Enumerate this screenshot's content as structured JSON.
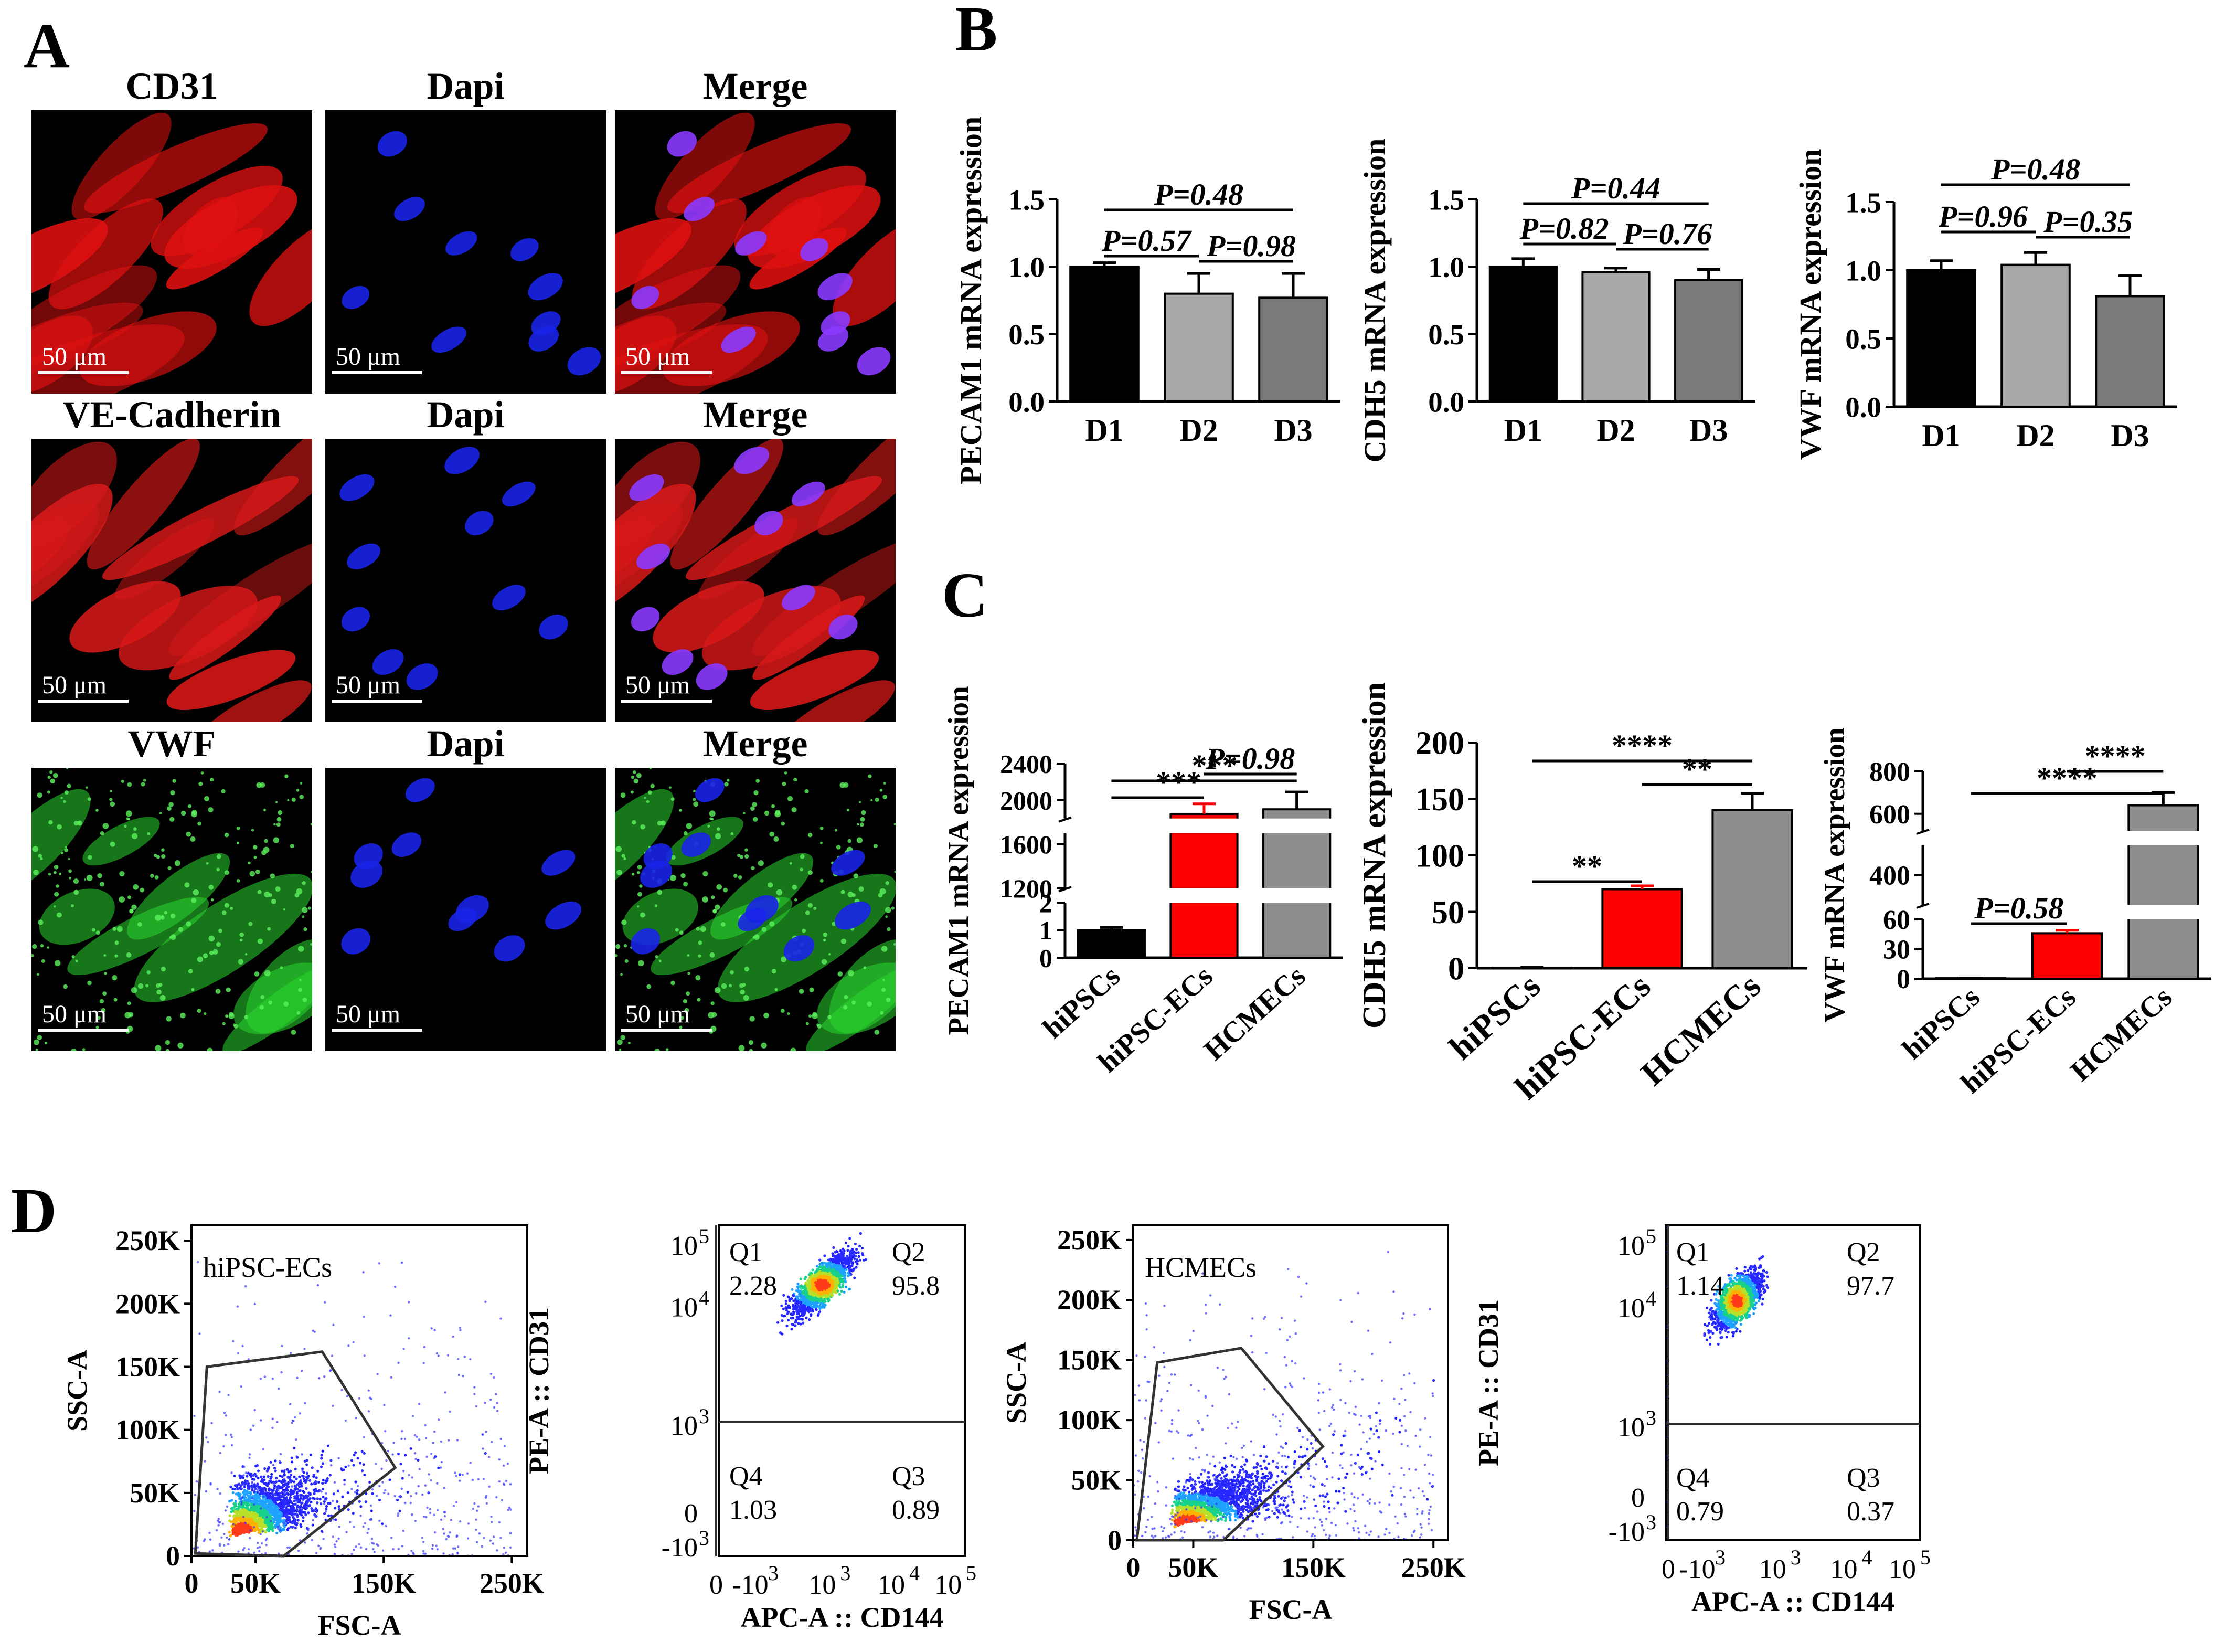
{
  "panel_labels": {
    "A": "A",
    "B": "B",
    "C": "C",
    "D": "D"
  },
  "panel_a": {
    "rows": [
      {
        "marker": "CD31",
        "dapi": "Dapi",
        "merge": "Merge",
        "scale": "50 μm",
        "color": "#e01010"
      },
      {
        "marker": "VE-Cadherin",
        "dapi": "Dapi",
        "merge": "Merge",
        "scale": "50 μm",
        "color": "#d81818"
      },
      {
        "marker": "VWF",
        "dapi": "Dapi",
        "merge": "Merge",
        "scale": "50 μm",
        "color": "#2ad630"
      }
    ],
    "nuclei_color": "#1a24e8"
  },
  "chart_data": [
    {
      "id": "B1",
      "type": "bar",
      "title": "",
      "ylabel": "PECAM1 mRNA  expression",
      "categories": [
        "D1",
        "D2",
        "D3"
      ],
      "values": [
        1.0,
        0.8,
        0.77
      ],
      "errors": [
        0.03,
        0.15,
        0.18
      ],
      "colors": [
        "#000000",
        "#a8a8a8",
        "#7a7a7a"
      ],
      "ylim": [
        0,
        1.5
      ],
      "yticks": [
        {
          "v": 0,
          "l": "0.0"
        },
        {
          "v": 0.5,
          "l": "0.5"
        },
        {
          "v": 1.0,
          "l": "1.0"
        },
        {
          "v": 1.5,
          "l": "1.5"
        }
      ],
      "comparisons": [
        {
          "from": 0,
          "to": 2,
          "label": "P=0.48"
        },
        {
          "from": 0,
          "to": 1,
          "label": "P=0.57"
        },
        {
          "from": 1,
          "to": 2,
          "label": "P=0.98"
        }
      ]
    },
    {
      "id": "B2",
      "type": "bar",
      "title": "",
      "ylabel": "CDH5 mRNA expression",
      "categories": [
        "D1",
        "D2",
        "D3"
      ],
      "values": [
        1.0,
        0.96,
        0.9
      ],
      "errors": [
        0.06,
        0.03,
        0.08
      ],
      "colors": [
        "#000000",
        "#a8a8a8",
        "#7a7a7a"
      ],
      "ylim": [
        0,
        1.5
      ],
      "yticks": [
        {
          "v": 0,
          "l": "0.0"
        },
        {
          "v": 0.5,
          "l": "0.5"
        },
        {
          "v": 1.0,
          "l": "1.0"
        },
        {
          "v": 1.5,
          "l": "1.5"
        }
      ],
      "comparisons": [
        {
          "from": 0,
          "to": 2,
          "label": "P=0.44"
        },
        {
          "from": 0,
          "to": 1,
          "label": "P=0.82"
        },
        {
          "from": 1,
          "to": 2,
          "label": "P=0.76"
        }
      ]
    },
    {
      "id": "B3",
      "type": "bar",
      "title": "",
      "ylabel": "VWF  mRNA  expression",
      "categories": [
        "D1",
        "D2",
        "D3"
      ],
      "values": [
        1.0,
        1.04,
        0.81
      ],
      "errors": [
        0.07,
        0.09,
        0.15
      ],
      "colors": [
        "#000000",
        "#a8a8a8",
        "#7a7a7a"
      ],
      "ylim": [
        0,
        1.5
      ],
      "yticks": [
        {
          "v": 0,
          "l": "0.0"
        },
        {
          "v": 0.5,
          "l": "0.5"
        },
        {
          "v": 1.0,
          "l": "1.0"
        },
        {
          "v": 1.5,
          "l": "1.5"
        }
      ],
      "comparisons": [
        {
          "from": 0,
          "to": 2,
          "label": "P=0.48"
        },
        {
          "from": 0,
          "to": 1,
          "label": "P=0.96"
        },
        {
          "from": 1,
          "to": 2,
          "label": "P=0.35"
        }
      ]
    },
    {
      "id": "C1",
      "type": "bar",
      "title": "",
      "ylabel": "PECAM1 mRNA expression",
      "categories": [
        "hiPSCs",
        "hiPSC-ECs",
        "HCMECs"
      ],
      "values": [
        1,
        1850,
        1900
      ],
      "errors": [
        0.1,
        110,
        190
      ],
      "colors": [
        "#000000",
        "#ff0000",
        "#8c8c8c"
      ],
      "axis": "broken",
      "segments": [
        {
          "lo": 0,
          "hi": 2
        },
        {
          "lo": 1200,
          "hi": 1700
        },
        {
          "lo": 1800,
          "hi": 2400
        }
      ],
      "yticks": [
        {
          "v": 0,
          "l": "0"
        },
        {
          "v": 1,
          "l": "1"
        },
        {
          "v": 2,
          "l": "2"
        },
        {
          "v": 1200,
          "l": "1200"
        },
        {
          "v": 1600,
          "l": "1600"
        },
        {
          "v": 2000,
          "l": "2000"
        },
        {
          "v": 2400,
          "l": "2400"
        }
      ],
      "comparisons": [
        {
          "from": 1,
          "to": 2,
          "label": "P=0.98"
        },
        {
          "from": 0,
          "to": 2,
          "label": "***"
        },
        {
          "from": 0,
          "to": 1,
          "label": "***"
        }
      ]
    },
    {
      "id": "C2",
      "type": "bar",
      "title": "",
      "ylabel": "CDH5 mRNA expression",
      "categories": [
        "hiPSCs",
        "hiPSC-ECs",
        "HCMECs"
      ],
      "values": [
        0.5,
        70,
        140
      ],
      "errors": [
        0.2,
        3,
        15
      ],
      "colors": [
        "#000000",
        "#ff0000",
        "#8c8c8c"
      ],
      "ylim": [
        0,
        200
      ],
      "yticks": [
        {
          "v": 0,
          "l": "0"
        },
        {
          "v": 50,
          "l": "50"
        },
        {
          "v": 100,
          "l": "100"
        },
        {
          "v": 150,
          "l": "150"
        },
        {
          "v": 200,
          "l": "200"
        }
      ],
      "comparisons": [
        {
          "from": 0,
          "to": 2,
          "label": "****"
        },
        {
          "from": 1,
          "to": 2,
          "label": "**"
        },
        {
          "from": 0,
          "to": 1,
          "label": "**"
        }
      ]
    },
    {
      "id": "C3",
      "type": "bar",
      "title": "",
      "ylabel": "VWF  mRNA expression",
      "categories": [
        "hiPSCs",
        "hiPSC-ECs",
        "HCMECs"
      ],
      "values": [
        0.5,
        46,
        640
      ],
      "errors": [
        0.2,
        3,
        60
      ],
      "colors": [
        "#000000",
        "#ff0000",
        "#8c8c8c"
      ],
      "axis": "broken",
      "segments": [
        {
          "lo": 0,
          "hi": 60
        },
        {
          "lo": 300,
          "hi": 500
        },
        {
          "lo": 520,
          "hi": 800
        }
      ],
      "yticks": [
        {
          "v": 0,
          "l": "0"
        },
        {
          "v": 30,
          "l": "30"
        },
        {
          "v": 60,
          "l": "60"
        },
        {
          "v": 400,
          "l": "400"
        },
        {
          "v": 600,
          "l": "600"
        },
        {
          "v": 800,
          "l": "800"
        }
      ],
      "comparisons": [
        {
          "from": 1,
          "to": 2,
          "label": "****"
        },
        {
          "from": 0,
          "to": 2,
          "label": "****"
        },
        {
          "from": 0,
          "to": 1,
          "label": "P=0.58"
        }
      ]
    },
    {
      "id": "D1",
      "type": "scatter",
      "title": "hiPSC-ECs",
      "xlabel": "FSC-A",
      "ylabel": "SSC-A",
      "xlim": [
        0,
        262144
      ],
      "ylim": [
        0,
        262144
      ],
      "xticks": [
        {
          "v": 0,
          "l": "0"
        },
        {
          "v": 50000,
          "l": "50K"
        },
        {
          "v": 150000,
          "l": "150K"
        },
        {
          "v": 250000,
          "l": "250K"
        }
      ],
      "yticks": [
        {
          "v": 0,
          "l": "0"
        },
        {
          "v": 50000,
          "l": "50K"
        },
        {
          "v": 100000,
          "l": "100K"
        },
        {
          "v": 150000,
          "l": "150K"
        },
        {
          "v": 200000,
          "l": "200K"
        },
        {
          "v": 250000,
          "l": "250K"
        }
      ],
      "gate": [
        [
          3000,
          2000
        ],
        [
          12000,
          150000
        ],
        [
          102000,
          162000
        ],
        [
          159000,
          70000
        ],
        [
          72000,
          0
        ]
      ],
      "cloud": {
        "center": [
          40000,
          18000
        ],
        "spread": [
          55000,
          55000
        ],
        "n": 1800
      }
    },
    {
      "id": "D2",
      "type": "scatter",
      "title": "",
      "xlabel": "APC-A :: CD144",
      "ylabel": "PE-A :: CD31",
      "quadrants": [
        {
          "id": "Q1",
          "value": "2.28"
        },
        {
          "id": "Q2",
          "value": "95.8"
        },
        {
          "id": "Q3",
          "value": "0.89"
        },
        {
          "id": "Q4",
          "value": "1.03"
        }
      ],
      "xticks": [
        "-10",
        "0",
        "10",
        "10",
        "10"
      ],
      "xexp": [
        "3",
        "",
        "3",
        "4",
        "5"
      ],
      "yticks": [
        "-10",
        "0",
        "10",
        "10",
        "10"
      ],
      "yexp": [
        "3",
        "",
        "3",
        "4",
        "5"
      ],
      "cloud": {
        "center": [
          0.42,
          0.82
        ],
        "spread": [
          0.25,
          0.17
        ],
        "n": 1800
      }
    },
    {
      "id": "D3",
      "type": "scatter",
      "title": "HCMECs",
      "xlabel": "FSC-A",
      "ylabel": "SSC-A",
      "xlim": [
        0,
        262144
      ],
      "ylim": [
        0,
        262144
      ],
      "xticks": [
        {
          "v": 0,
          "l": "0"
        },
        {
          "v": 50000,
          "l": "50K"
        },
        {
          "v": 150000,
          "l": "150K"
        },
        {
          "v": 250000,
          "l": "250K"
        }
      ],
      "yticks": [
        {
          "v": 0,
          "l": "0"
        },
        {
          "v": 50000,
          "l": "50K"
        },
        {
          "v": 100000,
          "l": "100K"
        },
        {
          "v": 150000,
          "l": "150K"
        },
        {
          "v": 200000,
          "l": "200K"
        },
        {
          "v": 250000,
          "l": "250K"
        }
      ],
      "gate": [
        [
          3000,
          0
        ],
        [
          20000,
          148000
        ],
        [
          90000,
          160000
        ],
        [
          158000,
          78000
        ],
        [
          75000,
          0
        ]
      ],
      "cloud": {
        "center": [
          45000,
          15000
        ],
        "spread": [
          70000,
          40000
        ],
        "n": 1800
      }
    },
    {
      "id": "D4",
      "type": "scatter",
      "title": "",
      "xlabel": "APC-A :: CD144",
      "ylabel": "PE-A :: CD31",
      "quadrants": [
        {
          "id": "Q1",
          "value": "1.14"
        },
        {
          "id": "Q2",
          "value": "97.7"
        },
        {
          "id": "Q3",
          "value": "0.37"
        },
        {
          "id": "Q4",
          "value": "0.79"
        }
      ],
      "xticks": [
        "-10",
        "0",
        "10",
        "10",
        "10"
      ],
      "xexp": [
        "3",
        "",
        "3",
        "4",
        "5"
      ],
      "yticks": [
        "-10",
        "0",
        "10",
        "10",
        "10"
      ],
      "yexp": [
        "3",
        "",
        "3",
        "4",
        "5"
      ],
      "cloud": {
        "center": [
          0.28,
          0.76
        ],
        "spread": [
          0.18,
          0.2
        ],
        "n": 1800
      }
    }
  ]
}
